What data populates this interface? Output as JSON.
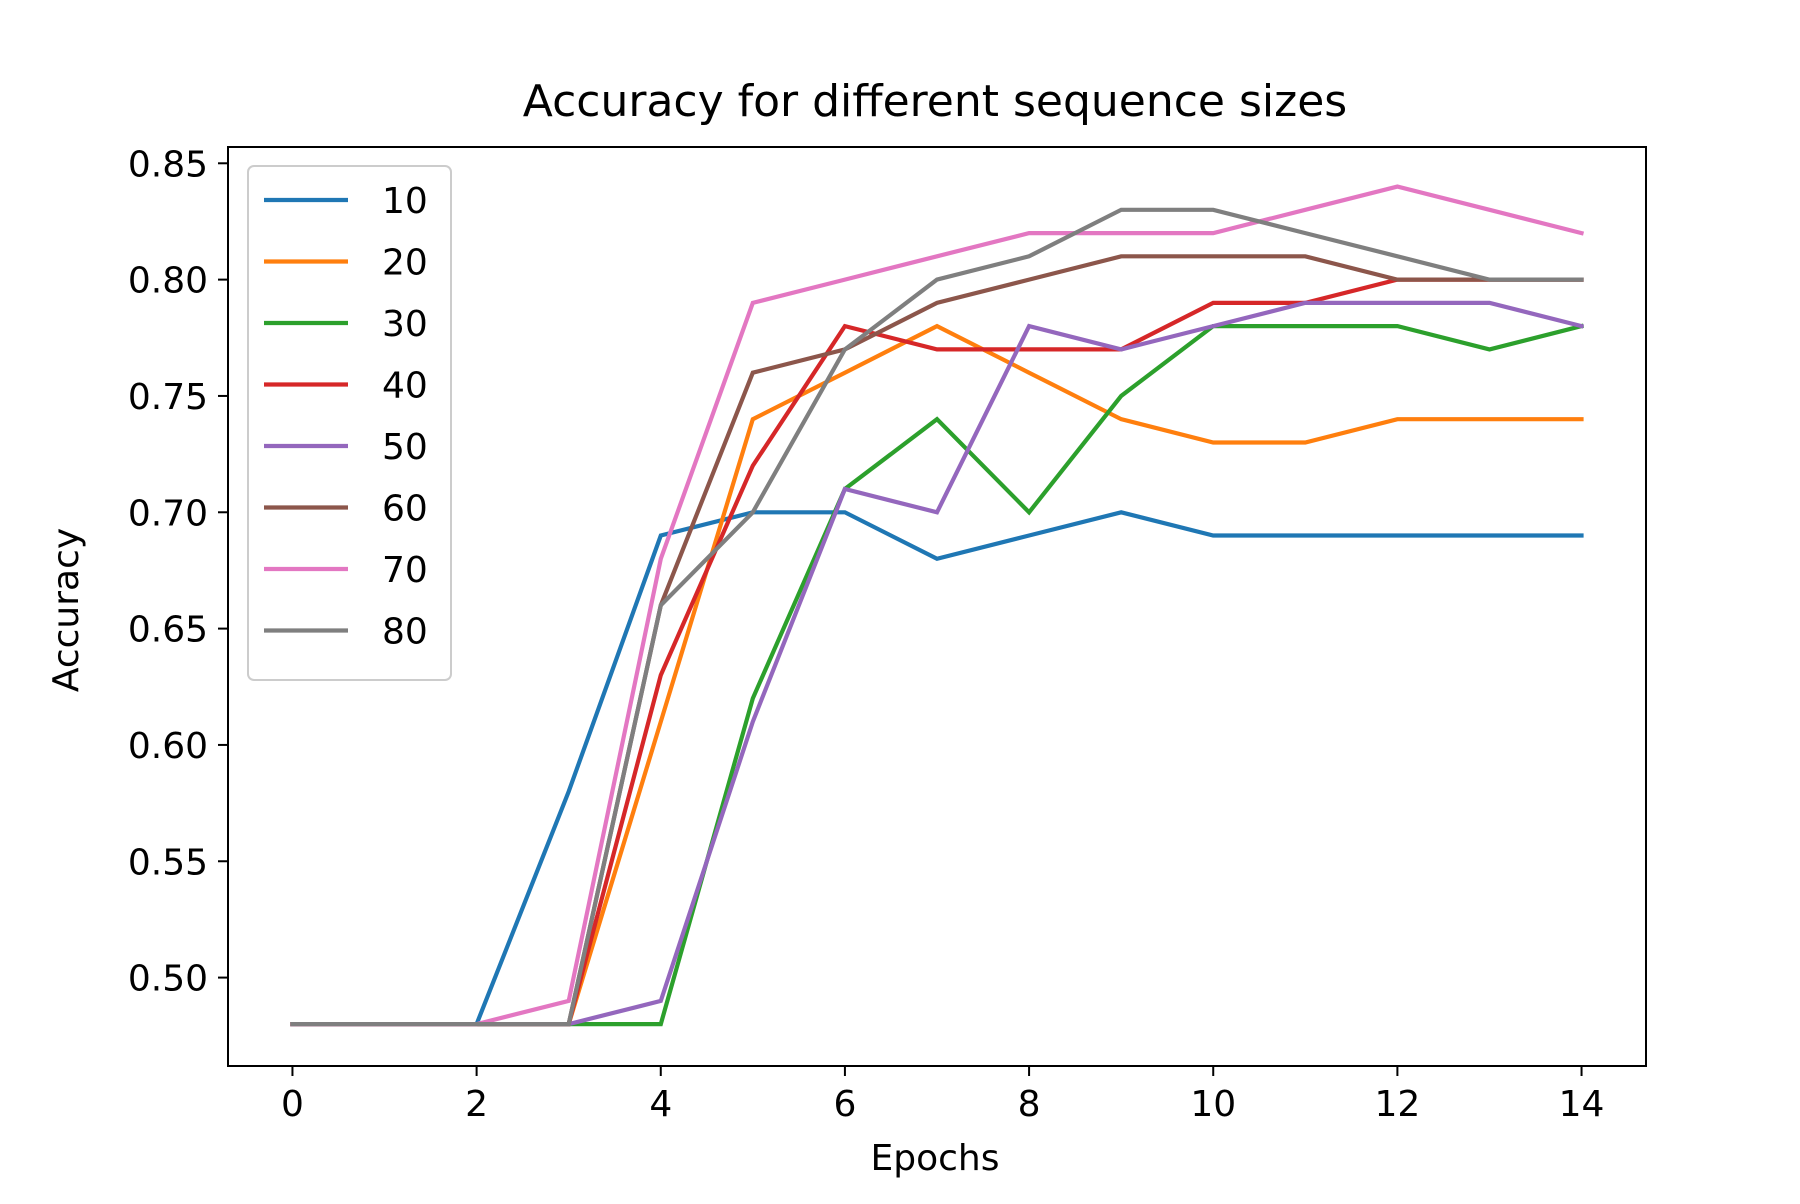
{
  "chart_data": {
    "type": "line",
    "title": "Accuracy for different sequence sizes",
    "xlabel": "Epochs",
    "ylabel": "Accuracy",
    "xlim": [
      -0.7,
      14.7
    ],
    "ylim": [
      0.462,
      0.857
    ],
    "xticks": [
      0,
      2,
      4,
      6,
      8,
      10,
      12,
      14
    ],
    "yticks": [
      0.5,
      0.55,
      0.6,
      0.65,
      0.7,
      0.75,
      0.8,
      0.85
    ],
    "ytick_labels": [
      "0.50",
      "0.55",
      "0.60",
      "0.65",
      "0.70",
      "0.75",
      "0.80",
      "0.85"
    ],
    "grid": false,
    "legend_position": "upper left",
    "x": [
      0,
      1,
      2,
      3,
      4,
      5,
      6,
      7,
      8,
      9,
      10,
      11,
      12,
      13,
      14
    ],
    "series": [
      {
        "name": "10",
        "color": "#1f77b4",
        "values": [
          0.48,
          0.48,
          0.48,
          0.58,
          0.69,
          0.7,
          0.7,
          0.68,
          0.69,
          0.7,
          0.69,
          0.69,
          0.69,
          0.69,
          0.69
        ]
      },
      {
        "name": "20",
        "color": "#ff7f0e",
        "values": [
          0.48,
          0.48,
          0.48,
          0.48,
          0.61,
          0.74,
          0.76,
          0.78,
          0.76,
          0.74,
          0.73,
          0.73,
          0.74,
          0.74,
          0.74
        ]
      },
      {
        "name": "30",
        "color": "#2ca02c",
        "values": [
          0.48,
          0.48,
          0.48,
          0.48,
          0.48,
          0.62,
          0.71,
          0.74,
          0.7,
          0.75,
          0.78,
          0.78,
          0.78,
          0.77,
          0.78
        ]
      },
      {
        "name": "40",
        "color": "#d62728",
        "values": [
          0.48,
          0.48,
          0.48,
          0.48,
          0.63,
          0.72,
          0.78,
          0.77,
          0.77,
          0.77,
          0.79,
          0.79,
          0.8,
          0.8,
          0.8
        ]
      },
      {
        "name": "50",
        "color": "#9467bd",
        "values": [
          0.48,
          0.48,
          0.48,
          0.48,
          0.49,
          0.61,
          0.71,
          0.7,
          0.78,
          0.77,
          0.78,
          0.79,
          0.79,
          0.79,
          0.78
        ]
      },
      {
        "name": "60",
        "color": "#8c564b",
        "values": [
          0.48,
          0.48,
          0.48,
          0.48,
          0.66,
          0.76,
          0.77,
          0.79,
          0.8,
          0.81,
          0.81,
          0.81,
          0.8,
          0.8,
          0.8
        ]
      },
      {
        "name": "70",
        "color": "#e377c2",
        "values": [
          0.48,
          0.48,
          0.48,
          0.49,
          0.68,
          0.79,
          0.8,
          0.81,
          0.82,
          0.82,
          0.82,
          0.83,
          0.84,
          0.83,
          0.82
        ]
      },
      {
        "name": "80",
        "color": "#7f7f7f",
        "values": [
          0.48,
          0.48,
          0.48,
          0.48,
          0.66,
          0.7,
          0.77,
          0.8,
          0.81,
          0.83,
          0.83,
          0.82,
          0.81,
          0.8,
          0.8
        ]
      }
    ]
  }
}
